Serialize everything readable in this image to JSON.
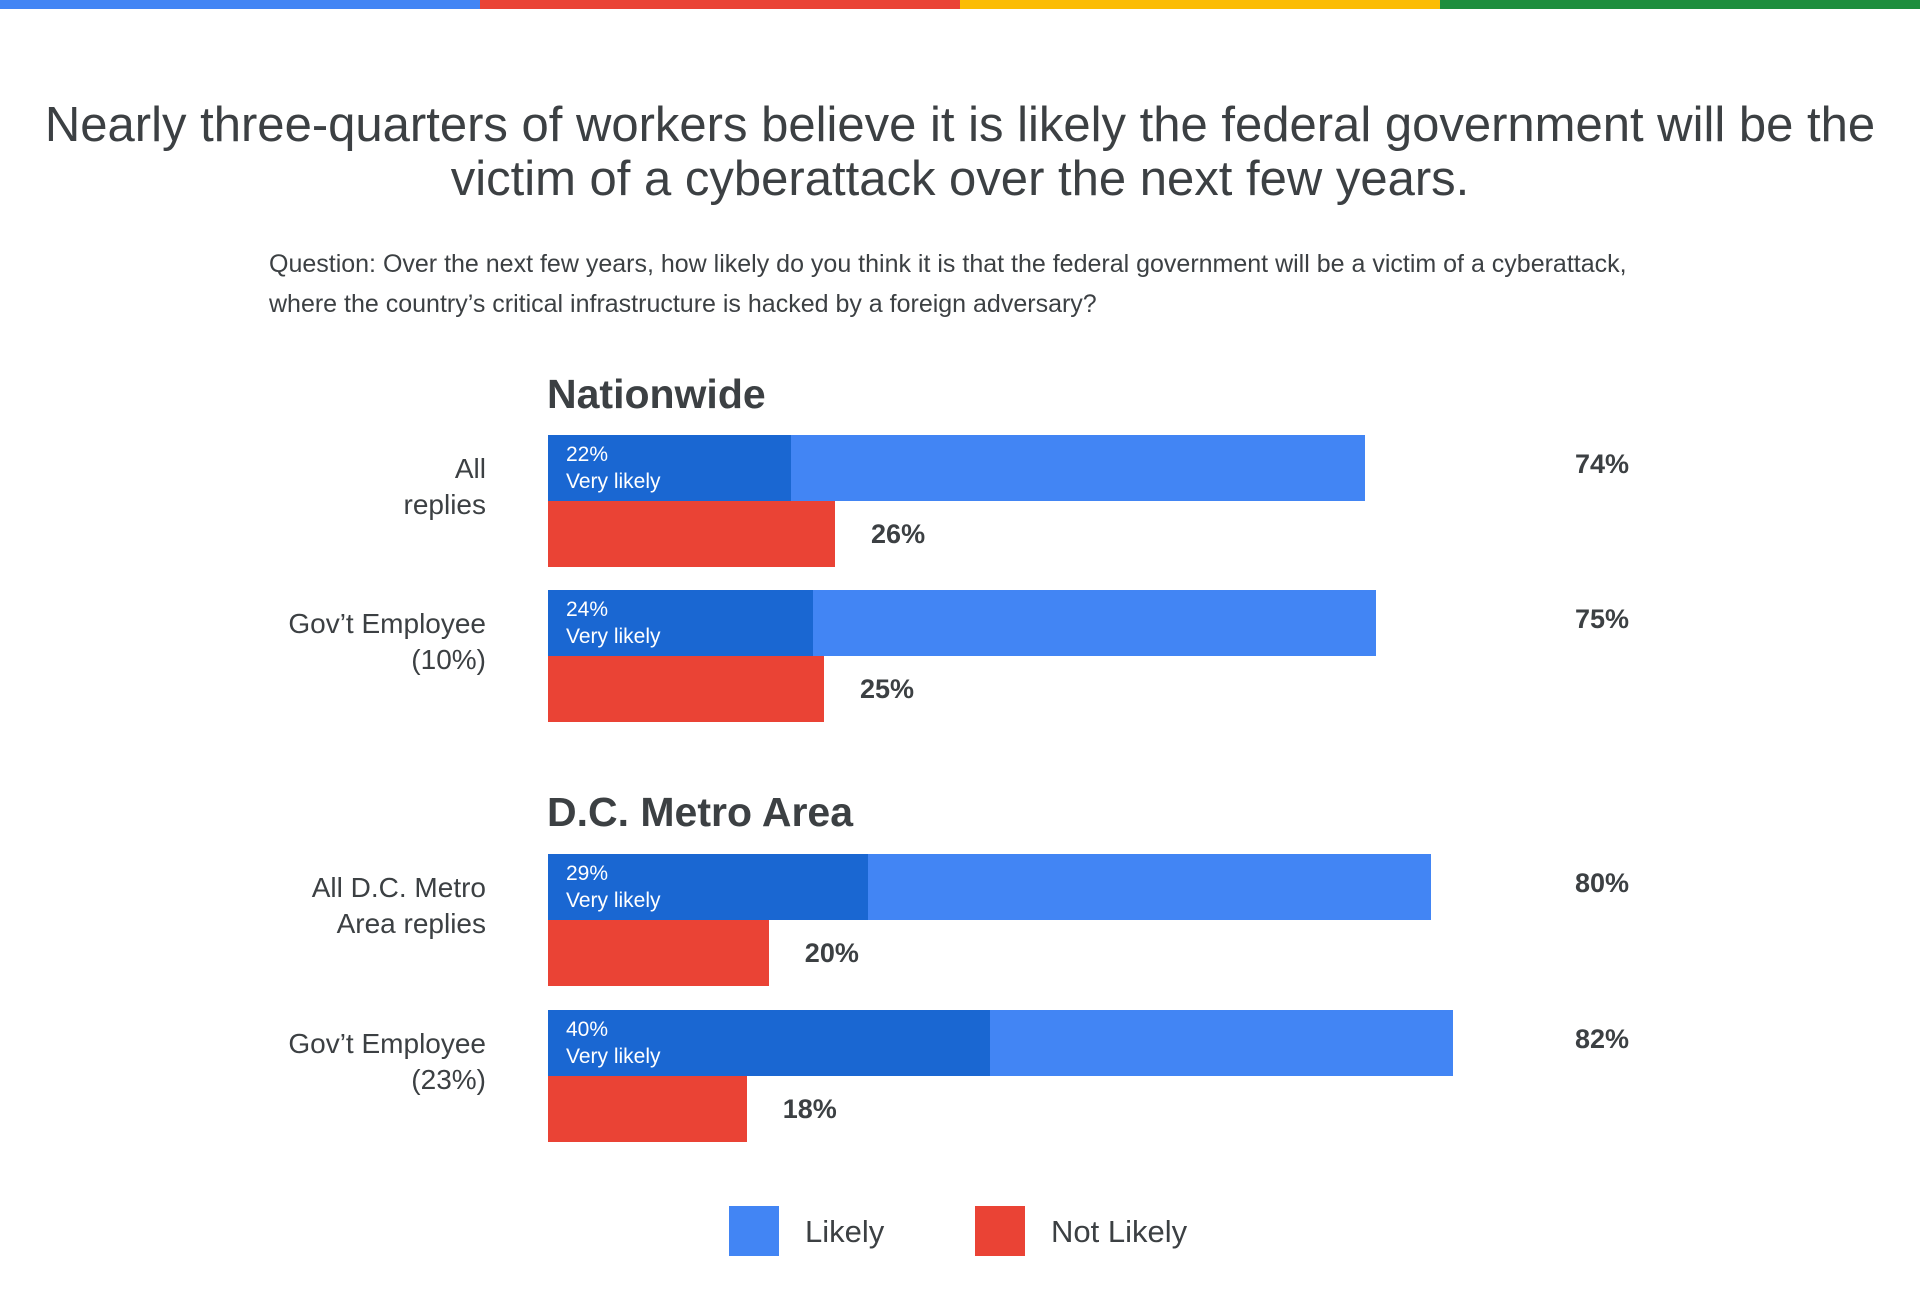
{
  "colors": {
    "likely": "#4285f4",
    "very_likely": "#1a67d2",
    "not_likely": "#ea4335",
    "top_bar": [
      "#4285f4",
      "#ea4335",
      "#fbbc04",
      "#1e8e3e"
    ]
  },
  "title": "Nearly three-quarters of workers believe it is likely the federal government will be the victim of a cyberattack over the next few years.",
  "subtitle": "Question: Over the next few years, how likely do you think it is that the federal government will be a victim of a cyberattack, where the country’s critical infrastructure is hacked by a foreign adversary?",
  "chart_data": {
    "type": "bar",
    "orientation": "horizontal",
    "xlim": [
      0,
      100
    ],
    "unit": "%",
    "groups": [
      {
        "title": "Nationwide",
        "rows": [
          {
            "label_lines": [
              "All",
              "replies"
            ],
            "likely": 74,
            "very_likely": 22,
            "not_likely": 26,
            "likely_label": "74%",
            "very_likely_label": "22%",
            "not_likely_label": "26%",
            "very_likely_caption": "Very likely"
          },
          {
            "label_lines": [
              "Gov’t Employee",
              "(10%)"
            ],
            "likely": 75,
            "very_likely": 24,
            "not_likely": 25,
            "likely_label": "75%",
            "very_likely_label": "24%",
            "not_likely_label": "25%",
            "very_likely_caption": "Very likely"
          }
        ]
      },
      {
        "title": "D.C. Metro Area",
        "rows": [
          {
            "label_lines": [
              "All D.C. Metro",
              "Area replies"
            ],
            "likely": 80,
            "very_likely": 29,
            "not_likely": 20,
            "likely_label": "80%",
            "very_likely_label": "29%",
            "not_likely_label": "20%",
            "very_likely_caption": "Very likely"
          },
          {
            "label_lines": [
              "Gov’t Employee",
              "(23%)"
            ],
            "likely": 82,
            "very_likely": 40,
            "not_likely": 18,
            "likely_label": "82%",
            "very_likely_label": "40%",
            "not_likely_label": "18%",
            "very_likely_caption": "Very likely"
          }
        ]
      }
    ],
    "legend": {
      "placement": "bottom-center",
      "items": [
        {
          "label": "Likely",
          "color": "#4285f4"
        },
        {
          "label": "Not Likely",
          "color": "#ea4335"
        }
      ]
    }
  }
}
